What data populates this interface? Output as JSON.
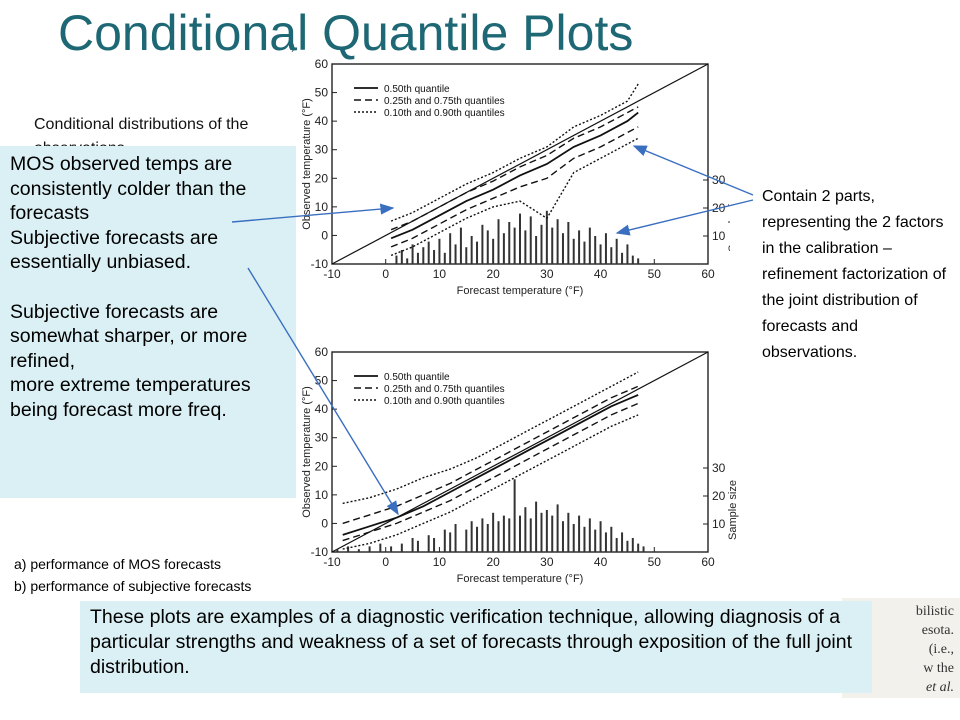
{
  "title": "Conditional Quantile Plots",
  "cond_text": "Conditional distributions of the observations",
  "left_callout": {
    "lines_a": [
      "MOS observed temps are consistently colder than the forecasts",
      "Subjective forecasts are essentially unbiased."
    ],
    "lines_b": [
      "Subjective forecasts are somewhat sharper, or more refined,",
      "more extreme temperatures being forecast more freq."
    ]
  },
  "right_text": "Contain 2 parts, representing the 2 factors in the calibration – refinement factorization of the joint distribution of forecasts and observations.",
  "captions": {
    "a": "a)    performance of MOS forecasts",
    "b": "b)     performance of subjective forecasts"
  },
  "bottom_callout": "These plots are examples of a diagnostic verification technique, allowing diagnosis of a particular strengths and weakness of a set of forecasts through exposition of the full joint distribution.",
  "scan_fragments": [
    "bilistic",
    "esota.",
    "(i.e.,",
    "w the",
    "et al."
  ],
  "colors": {
    "title": "#1d6874",
    "callout_bg": "#daf0f4",
    "arrow": "#3a6fc0"
  },
  "chart_data": [
    {
      "type": "line",
      "panel_label": "a)",
      "xlabel": "Forecast temperature (°F)",
      "ylabel": "Observed temperature (°F)",
      "y2label": "Sample size",
      "xlim": [
        -10,
        60
      ],
      "ylim": [
        -10,
        60
      ],
      "y2lim": [
        0,
        30
      ],
      "x_ticks": [
        -10,
        0,
        10,
        20,
        30,
        40,
        50,
        60
      ],
      "y_ticks": [
        -10,
        0,
        10,
        20,
        30,
        40,
        50,
        60
      ],
      "y2_ticks": [
        10,
        20,
        30
      ],
      "legend": [
        "0.50th quantile",
        "0.25th and 0.75th quantiles",
        "0.10th and 0.90th quantiles"
      ],
      "x": [
        1,
        5,
        10,
        15,
        20,
        25,
        30,
        35,
        40,
        45,
        47
      ],
      "series": [
        {
          "name": "0.10th and 0.90th quantiles",
          "values": [
            -7,
            -4,
            1,
            6,
            10,
            12,
            6,
            22,
            27,
            32,
            34
          ]
        },
        {
          "name": "0.25th and 0.75th quantiles",
          "values": [
            -4,
            -1,
            4,
            9,
            13,
            17,
            20,
            27,
            31,
            36,
            38
          ]
        },
        {
          "name": "0.50th quantile",
          "values": [
            -1,
            2,
            7,
            12,
            16,
            21,
            25,
            31,
            35,
            40,
            43
          ]
        },
        {
          "name": "0.25th and 0.75th quantiles",
          "values": [
            2,
            5,
            10,
            15,
            19,
            24,
            28,
            34,
            38,
            43,
            45
          ]
        },
        {
          "name": "0.10th and 0.90th quantiles",
          "values": [
            5,
            8,
            13,
            18,
            22,
            27,
            31,
            38,
            42,
            47,
            53
          ]
        }
      ],
      "sample_size": {
        "x": [
          2,
          3,
          4,
          5,
          6,
          7,
          8,
          9,
          10,
          11,
          12,
          13,
          14,
          15,
          16,
          17,
          18,
          19,
          20,
          21,
          22,
          23,
          24,
          25,
          26,
          27,
          28,
          29,
          30,
          31,
          32,
          33,
          34,
          35,
          36,
          37,
          38,
          39,
          40,
          41,
          42,
          43,
          44,
          45,
          46,
          47
        ],
        "values": [
          3,
          5,
          2,
          7,
          4,
          6,
          8,
          5,
          9,
          4,
          11,
          7,
          13,
          6,
          10,
          8,
          14,
          12,
          9,
          16,
          11,
          15,
          13,
          18,
          12,
          17,
          10,
          14,
          19,
          13,
          16,
          11,
          15,
          9,
          12,
          8,
          13,
          10,
          7,
          11,
          6,
          9,
          4,
          7,
          3,
          2
        ]
      }
    },
    {
      "type": "line",
      "panel_label": "b)",
      "xlabel": "Forecast temperature (°F)",
      "ylabel": "Observed temperature (°F)",
      "y2label": "Sample size",
      "xlim": [
        -10,
        60
      ],
      "ylim": [
        -10,
        60
      ],
      "y2lim": [
        0,
        30
      ],
      "x_ticks": [
        -10,
        0,
        10,
        20,
        30,
        40,
        50,
        60
      ],
      "y_ticks": [
        -10,
        0,
        10,
        20,
        30,
        40,
        50,
        60
      ],
      "y2_ticks": [
        10,
        20,
        30
      ],
      "legend": [
        "0.50th quantile",
        "0.25th and 0.75th quantiles",
        "0.10th and 0.90th quantiles"
      ],
      "x": [
        -8,
        -3,
        2,
        7,
        12,
        17,
        22,
        27,
        32,
        37,
        42,
        47
      ],
      "series": [
        {
          "name": "0.10th and 0.90th quantiles",
          "values": [
            -9,
            -7,
            -4,
            0,
            4,
            9,
            14,
            19,
            24,
            29,
            34,
            38
          ]
        },
        {
          "name": "0.25th and 0.75th quantiles",
          "values": [
            -6,
            -3,
            0,
            4,
            8,
            13,
            18,
            23,
            28,
            33,
            38,
            42
          ]
        },
        {
          "name": "0.50th quantile",
          "values": [
            -4,
            -1,
            2,
            6,
            11,
            16,
            21,
            26,
            31,
            36,
            41,
            45
          ]
        },
        {
          "name": "0.25th and 0.75th quantiles",
          "values": [
            0,
            3,
            6,
            10,
            14,
            19,
            24,
            29,
            34,
            39,
            44,
            48
          ]
        },
        {
          "name": "0.10th and 0.90th quantiles",
          "values": [
            7,
            9,
            12,
            16,
            19,
            23,
            28,
            33,
            38,
            43,
            48,
            53
          ]
        }
      ],
      "sample_size": {
        "x": [
          -9,
          -7,
          -5,
          -3,
          -1,
          1,
          3,
          5,
          6,
          8,
          9,
          11,
          12,
          13,
          15,
          16,
          17,
          18,
          19,
          20,
          21,
          22,
          23,
          24,
          25,
          26,
          27,
          28,
          29,
          30,
          31,
          32,
          33,
          34,
          35,
          36,
          37,
          38,
          39,
          40,
          41,
          42,
          43,
          44,
          45,
          46,
          47,
          48
        ],
        "values": [
          1,
          2,
          1,
          2,
          3,
          2,
          3,
          5,
          4,
          6,
          5,
          8,
          7,
          10,
          8,
          11,
          9,
          12,
          10,
          14,
          11,
          13,
          12,
          26,
          13,
          16,
          12,
          18,
          14,
          15,
          13,
          17,
          11,
          14,
          10,
          13,
          9,
          12,
          8,
          11,
          7,
          9,
          5,
          7,
          4,
          5,
          3,
          2
        ]
      }
    }
  ]
}
